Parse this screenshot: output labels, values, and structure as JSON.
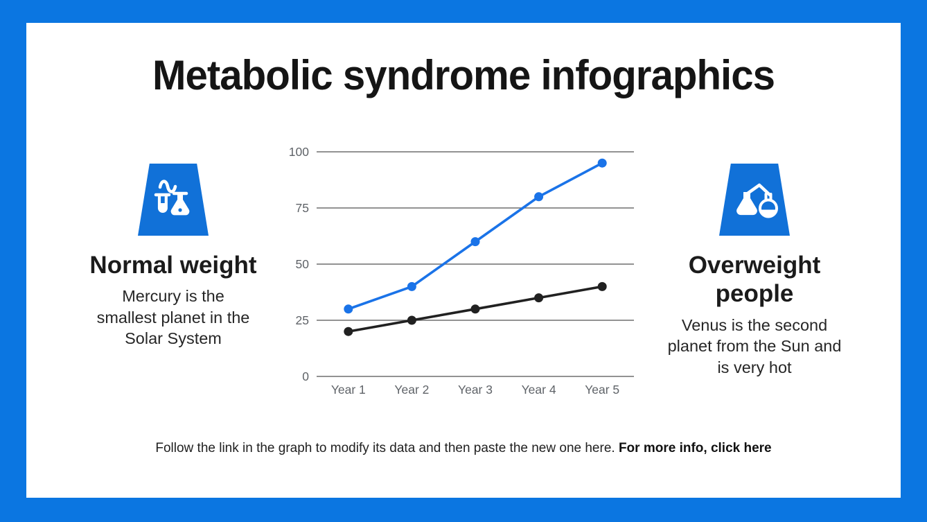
{
  "title": "Metabolic syndrome infographics",
  "left_feature": {
    "icon": "test-tube-and-flask-icon",
    "heading": "Normal weight",
    "description": "Mercury is the smallest planet in the Solar System"
  },
  "right_feature": {
    "icon": "distillation-flasks-icon",
    "heading": "Overweight people",
    "description": "Venus is the second planet from the Sun and is very hot"
  },
  "footer": {
    "text": "Follow the link in the graph to modify its data and then paste the new one here.",
    "link_text": "For more info, click here"
  },
  "colors": {
    "frame_blue": "#0b76e1",
    "icon_blue": "#1171d8",
    "series_blue": "#1a73e8",
    "series_black": "#212121",
    "axis_text": "#5f6368",
    "gridline": "#6f6f6f"
  },
  "chart_data": {
    "type": "line",
    "categories": [
      "Year 1",
      "Year 2",
      "Year 3",
      "Year 4",
      "Year 5"
    ],
    "series": [
      {
        "name": "blue-series",
        "color": "#1a73e8",
        "values": [
          30,
          40,
          60,
          80,
          95
        ]
      },
      {
        "name": "black-series",
        "color": "#212121",
        "values": [
          20,
          25,
          30,
          35,
          40
        ]
      }
    ],
    "title": "",
    "xlabel": "",
    "ylabel": "",
    "ylim": [
      0,
      100
    ],
    "yticks": [
      0,
      25,
      50,
      75,
      100
    ],
    "grid": true,
    "legend": false,
    "marker": "circle"
  }
}
